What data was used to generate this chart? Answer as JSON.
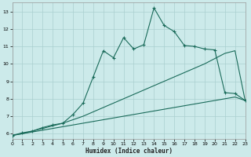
{
  "xlabel": "Humidex (Indice chaleur)",
  "bg_color": "#cceaea",
  "grid_color": "#aacfcf",
  "line_color": "#1a6b5a",
  "x_min": 0,
  "x_max": 23,
  "y_min": 5.7,
  "y_max": 13.5,
  "yticks": [
    6,
    7,
    8,
    9,
    10,
    11,
    12,
    13
  ],
  "xticks": [
    0,
    1,
    2,
    3,
    4,
    5,
    6,
    7,
    8,
    9,
    10,
    11,
    12,
    13,
    14,
    15,
    16,
    17,
    18,
    19,
    20,
    21,
    22,
    23
  ],
  "line1_x": [
    0,
    1,
    2,
    3,
    4,
    5,
    6,
    7,
    8,
    9,
    10,
    11,
    12,
    13,
    14,
    15,
    16,
    17,
    18,
    19,
    20,
    21,
    22,
    23
  ],
  "line1_y": [
    5.9,
    6.0,
    6.1,
    6.2,
    6.3,
    6.4,
    6.5,
    6.6,
    6.7,
    6.8,
    6.9,
    7.0,
    7.1,
    7.2,
    7.3,
    7.4,
    7.5,
    7.6,
    7.7,
    7.8,
    7.9,
    8.0,
    8.1,
    7.9
  ],
  "line2_x": [
    0,
    1,
    2,
    3,
    4,
    5,
    6,
    7,
    8,
    9,
    10,
    11,
    12,
    13,
    14,
    15,
    16,
    17,
    18,
    19,
    20,
    21,
    22,
    23
  ],
  "line2_y": [
    5.9,
    6.0,
    6.15,
    6.3,
    6.45,
    6.6,
    6.8,
    7.0,
    7.25,
    7.5,
    7.75,
    8.0,
    8.25,
    8.5,
    8.75,
    9.0,
    9.25,
    9.5,
    9.75,
    10.0,
    10.3,
    10.6,
    10.75,
    7.9
  ],
  "line3_x": [
    0,
    1,
    2,
    3,
    4,
    5,
    6,
    7,
    8,
    9,
    10,
    11,
    12,
    13,
    14,
    15,
    16,
    17,
    18,
    19,
    20,
    21,
    22,
    23
  ],
  "line3_y": [
    5.9,
    6.05,
    6.15,
    6.35,
    6.5,
    6.6,
    7.1,
    7.75,
    9.25,
    10.75,
    10.35,
    11.5,
    10.85,
    11.1,
    13.2,
    12.2,
    11.85,
    11.05,
    11.0,
    10.85,
    10.8,
    8.35,
    8.3,
    7.9
  ]
}
